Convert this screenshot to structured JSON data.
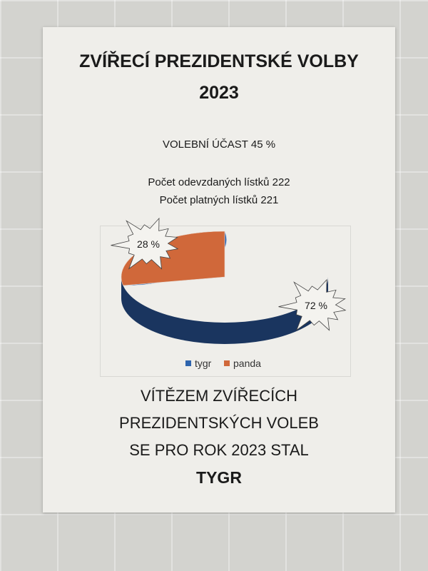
{
  "poster": {
    "title_line1": "ZVÍŘECÍ PREZIDENTSKÉ VOLBY",
    "title_line2": "2023",
    "turnout": "VOLEBNÍ ÚČAST 45 %",
    "ballots_cast": "Počet odevzdaných lístků 222",
    "ballots_valid": "Počet platných lístků 221",
    "winner_line1": "VÍTĚZEM ZVÍŘECÍCH",
    "winner_line2": "PREZIDENTSKÝCH VOLEB",
    "winner_line3": "SE PRO ROK 2023 STAL",
    "winner_name": "TYGR"
  },
  "chart_data": {
    "type": "pie",
    "style": "3d",
    "categories": [
      "tygr",
      "panda"
    ],
    "values": [
      72,
      28
    ],
    "data_labels": [
      "72 %",
      "28 %"
    ],
    "colors": [
      "#2e64ad",
      "#d0683a"
    ],
    "legend": "bottom"
  }
}
